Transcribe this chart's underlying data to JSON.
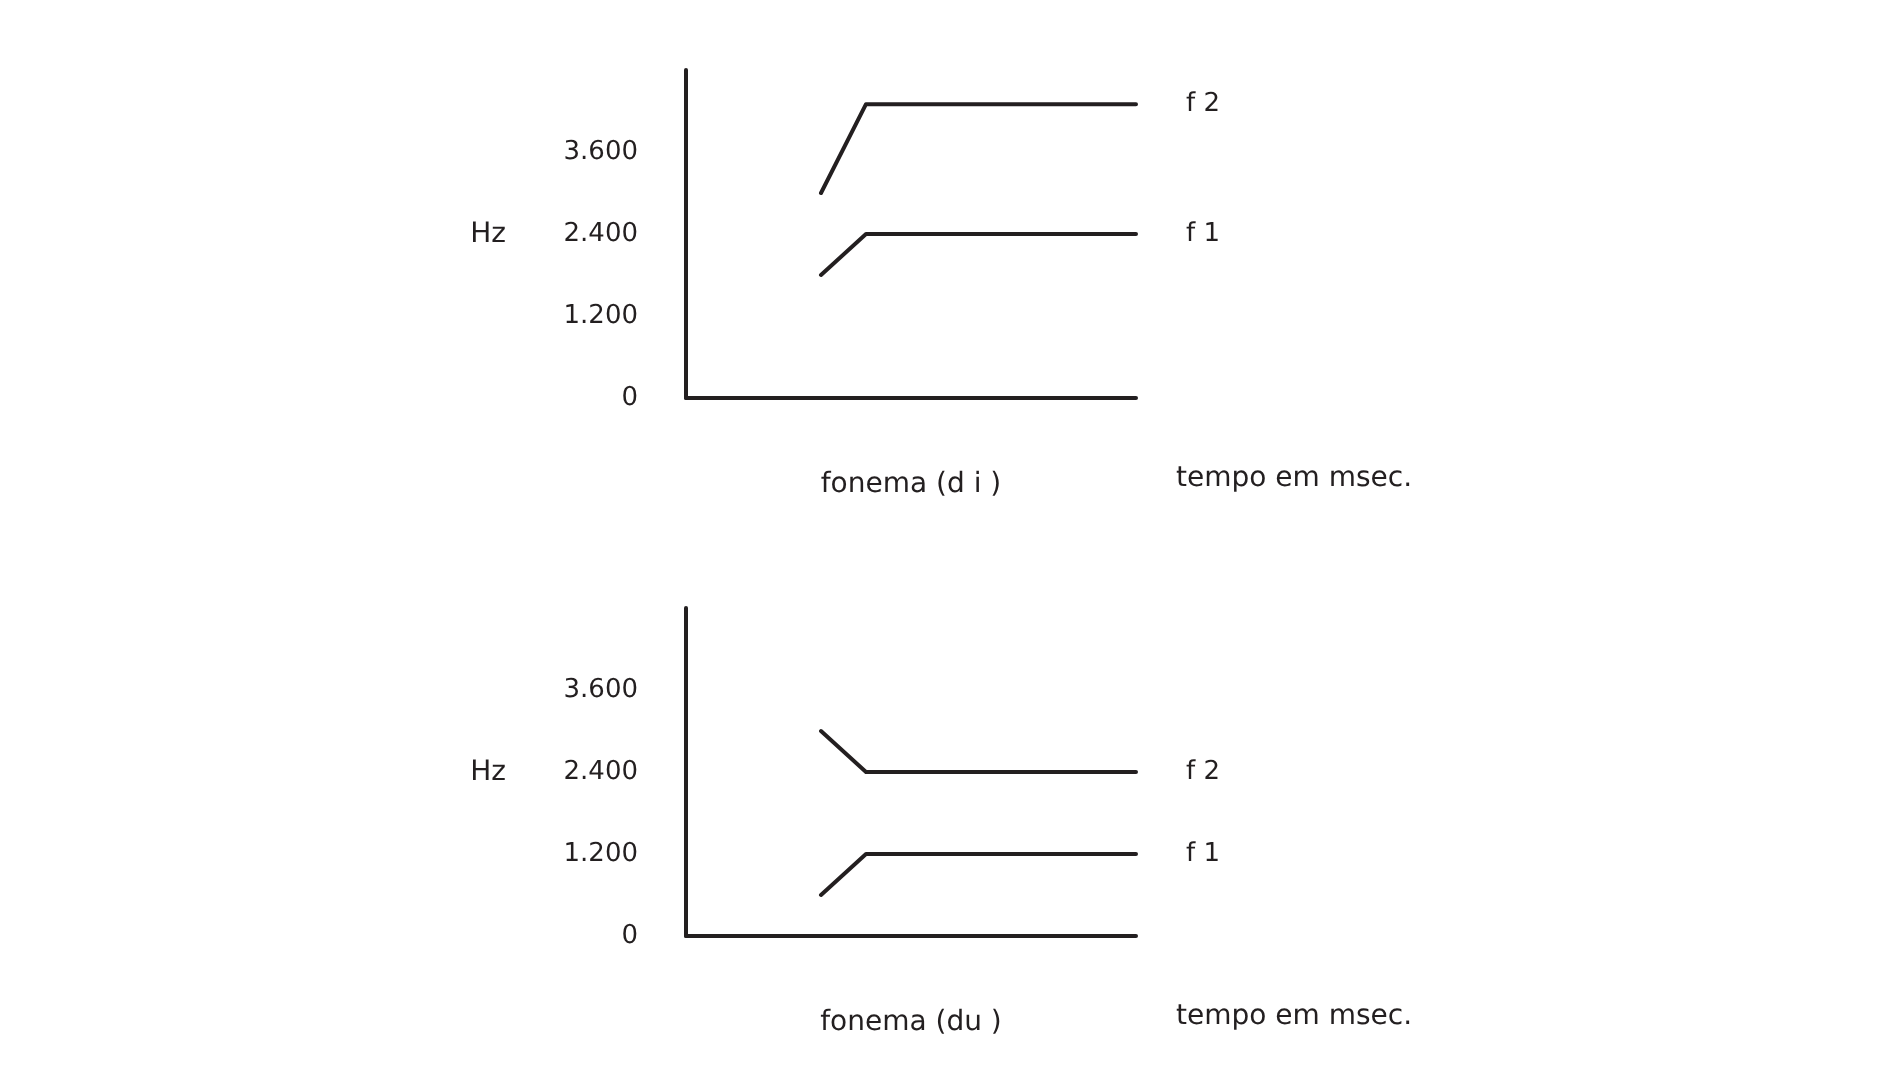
{
  "chart_data": [
    {
      "type": "line",
      "xlabel": "fonema (d i )",
      "ylabel": "Hz",
      "annotations": [
        "tempo em msec."
      ],
      "categories": [
        null,
        null,
        null,
        null,
        null,
        null,
        null,
        null,
        null,
        null,
        null
      ],
      "ylim": [
        0,
        4800
      ],
      "yticks": [
        {
          "value": 0,
          "label": "0"
        },
        {
          "value": 1200,
          "label": "1.200"
        },
        {
          "value": 2400,
          "label": "2.400"
        },
        {
          "value": 3600,
          "label": "3.600"
        }
      ],
      "tick_labels": "y",
      "grid": false,
      "legend": false,
      "marker": "none",
      "line_style": "solid",
      "series": [
        {
          "name": "f 2",
          "color": "#231f20",
          "values": [
            null,
            null,
            null,
            3000,
            4300,
            4300,
            4300,
            4300,
            4300,
            4300,
            4300
          ]
        },
        {
          "name": "f 1",
          "color": "#231f20",
          "values": [
            null,
            null,
            null,
            1800,
            2400,
            2400,
            2400,
            2400,
            2400,
            2400,
            2400
          ]
        }
      ]
    },
    {
      "type": "line",
      "xlabel": "fonema (du )",
      "ylabel": "Hz",
      "annotations": [
        "tempo em msec."
      ],
      "categories": [
        null,
        null,
        null,
        null,
        null,
        null,
        null,
        null,
        null,
        null,
        null
      ],
      "ylim": [
        0,
        4800
      ],
      "yticks": [
        {
          "value": 0,
          "label": "0"
        },
        {
          "value": 1200,
          "label": "1.200"
        },
        {
          "value": 2400,
          "label": "2.400"
        },
        {
          "value": 3600,
          "label": "3.600"
        }
      ],
      "tick_labels": "y",
      "grid": false,
      "legend": false,
      "marker": "none",
      "line_style": "solid",
      "series": [
        {
          "name": "f 2",
          "color": "#231f20",
          "values": [
            null,
            null,
            null,
            3000,
            2400,
            2400,
            2400,
            2400,
            2400,
            2400,
            2400
          ]
        },
        {
          "name": "f 1",
          "color": "#231f20",
          "values": [
            null,
            null,
            null,
            600,
            1200,
            1200,
            1200,
            1200,
            1200,
            1200,
            1200
          ]
        }
      ]
    }
  ]
}
